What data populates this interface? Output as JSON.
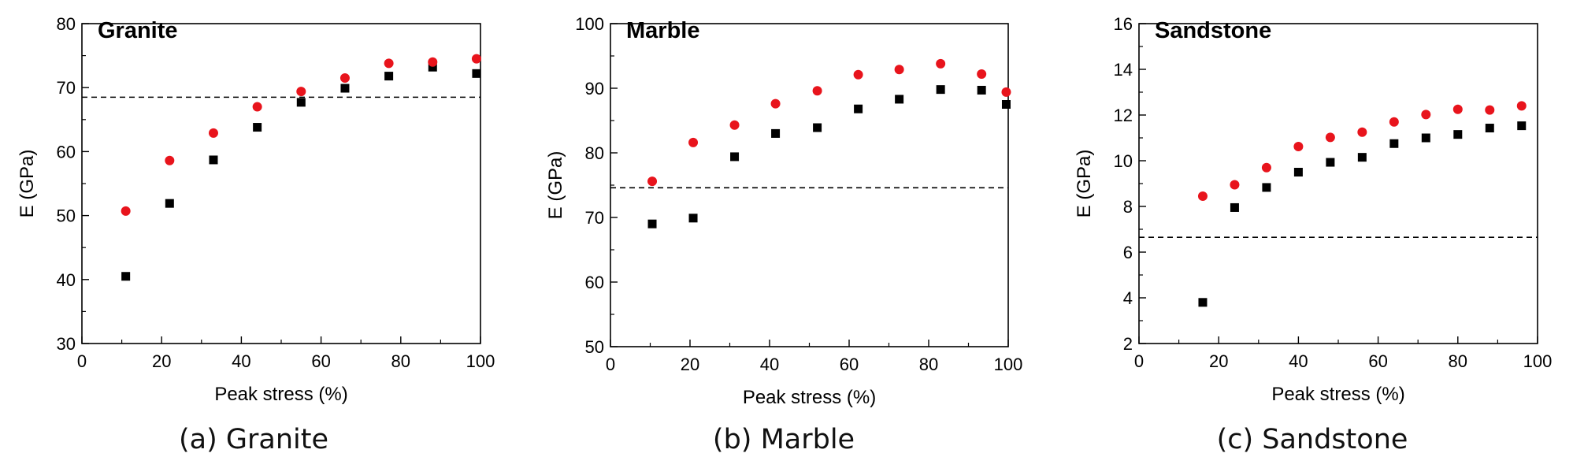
{
  "chart_data": [
    {
      "type": "scatter",
      "title": "Granite",
      "caption": "(a) Granite",
      "xlabel": "Peak stress (%)",
      "ylabel": "E (GPa)",
      "xlim": [
        0,
        100
      ],
      "ylim": [
        30,
        80
      ],
      "xticks": [
        0,
        20,
        40,
        60,
        80,
        100
      ],
      "yticks": [
        30,
        40,
        50,
        60,
        70,
        80
      ],
      "reference_line": 68.5,
      "series": [
        {
          "marker": "square",
          "color": "#000000",
          "x": [
            11,
            22,
            33,
            44,
            55,
            66,
            77,
            88,
            99
          ],
          "y": [
            40.5,
            51.9,
            58.7,
            63.8,
            67.7,
            69.9,
            71.8,
            73.2,
            72.2
          ]
        },
        {
          "marker": "circle",
          "color": "#e8141c",
          "x": [
            11,
            22,
            33,
            44,
            55,
            66,
            77,
            88,
            99
          ],
          "y": [
            50.7,
            58.6,
            62.9,
            67.0,
            69.4,
            71.5,
            73.8,
            74.0,
            74.5
          ]
        }
      ]
    },
    {
      "type": "scatter",
      "title": "Marble",
      "caption": "(b) Marble",
      "xlabel": "Peak stress (%)",
      "ylabel": "E (GPa)",
      "xlim": [
        0,
        100
      ],
      "ylim": [
        50,
        100
      ],
      "xticks": [
        0,
        20,
        40,
        60,
        80,
        100
      ],
      "yticks": [
        50,
        60,
        70,
        80,
        90,
        100
      ],
      "reference_line": 74.6,
      "series": [
        {
          "marker": "square",
          "color": "#000000",
          "x": [
            10.5,
            20.8,
            31.2,
            41.5,
            52,
            62.3,
            72.6,
            83,
            93.3,
            99.5
          ],
          "y": [
            69.0,
            69.9,
            79.4,
            83.0,
            83.9,
            86.8,
            88.3,
            89.8,
            89.7,
            87.5
          ]
        },
        {
          "marker": "circle",
          "color": "#e8141c",
          "x": [
            10.5,
            20.8,
            31.2,
            41.5,
            52,
            62.3,
            72.6,
            83,
            93.3,
            99.5
          ],
          "y": [
            75.6,
            81.6,
            84.3,
            87.6,
            89.6,
            92.1,
            92.9,
            93.8,
            92.2,
            89.4
          ]
        }
      ]
    },
    {
      "type": "scatter",
      "title": "Sandstone",
      "caption": "(c) Sandstone",
      "xlabel": "Peak stress (%)",
      "ylabel": "E (GPa)",
      "xlim": [
        0,
        100
      ],
      "ylim": [
        2,
        16
      ],
      "xticks": [
        0,
        20,
        40,
        60,
        80,
        100
      ],
      "yticks": [
        2,
        4,
        6,
        8,
        10,
        12,
        14,
        16
      ],
      "reference_line": 6.65,
      "series": [
        {
          "marker": "square",
          "color": "#000000",
          "x": [
            16,
            24,
            32,
            40,
            48,
            56,
            64,
            72,
            80,
            88,
            96
          ],
          "y": [
            3.8,
            7.95,
            8.83,
            9.5,
            9.93,
            10.15,
            10.75,
            11.0,
            11.15,
            11.43,
            11.53
          ]
        },
        {
          "marker": "circle",
          "color": "#e8141c",
          "x": [
            16,
            24,
            32,
            40,
            48,
            56,
            64,
            72,
            80,
            88,
            96
          ],
          "y": [
            8.45,
            8.95,
            9.7,
            10.62,
            11.02,
            11.25,
            11.7,
            12.02,
            12.25,
            12.22,
            12.4
          ]
        }
      ]
    }
  ]
}
